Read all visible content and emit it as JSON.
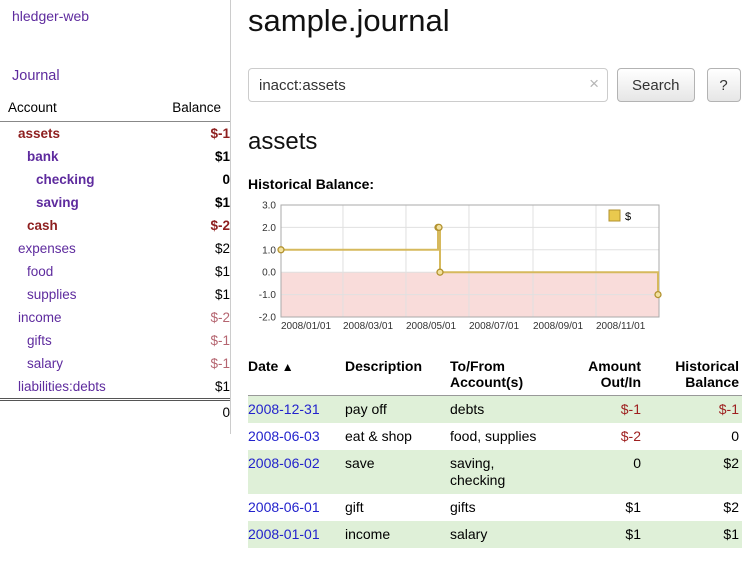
{
  "app": {
    "title": "hledger-web"
  },
  "theme": {
    "link_purple": "#5e2b9e",
    "negative_dark": "#8e1f1f",
    "negative_light": "#b56570",
    "negative": "#9e2020",
    "date_link_blue": "#2222cc",
    "row_green": "#dff0d8"
  },
  "sidebar": {
    "journal_label": "Journal",
    "accounts": {
      "col_account": "Account",
      "col_balance": "Balance",
      "rows": [
        {
          "name": "assets",
          "balance": "$-1",
          "indent": 0,
          "bold": true,
          "name_negative": true,
          "balance_negative": true
        },
        {
          "name": "bank",
          "balance": "$1",
          "indent": 1,
          "bold": true,
          "name_negative": false,
          "balance_negative": false
        },
        {
          "name": "checking",
          "balance": "0",
          "indent": 2,
          "bold": true,
          "name_negative": false,
          "balance_negative": false
        },
        {
          "name": "saving",
          "balance": "$1",
          "indent": 2,
          "bold": true,
          "name_negative": false,
          "balance_negative": false
        },
        {
          "name": "cash",
          "balance": "$-2",
          "indent": 1,
          "bold": true,
          "name_negative": true,
          "balance_negative": true
        },
        {
          "name": "expenses",
          "balance": "$2",
          "indent": 0,
          "bold": false,
          "name_negative": false,
          "balance_negative": false
        },
        {
          "name": "food",
          "balance": "$1",
          "indent": 1,
          "bold": false,
          "name_negative": false,
          "balance_negative": false
        },
        {
          "name": "supplies",
          "balance": "$1",
          "indent": 1,
          "bold": false,
          "name_negative": false,
          "balance_negative": false
        },
        {
          "name": "income",
          "balance": "$-2",
          "indent": 0,
          "bold": false,
          "name_negative": false,
          "balance_negative": true
        },
        {
          "name": "gifts",
          "balance": "$-1",
          "indent": 1,
          "bold": false,
          "name_negative": false,
          "balance_negative": true
        },
        {
          "name": "salary",
          "balance": "$-1",
          "indent": 1,
          "bold": false,
          "name_negative": false,
          "balance_negative": true
        },
        {
          "name": "liabilities:debts",
          "balance": "$1",
          "indent": 0,
          "bold": false,
          "name_negative": false,
          "balance_negative": false
        }
      ],
      "total": "0"
    }
  },
  "main": {
    "title": "sample.journal",
    "search": {
      "value": "inacct:assets",
      "clear_icon": "×",
      "search_label": "Search",
      "help_label": "?"
    },
    "account_heading": "assets",
    "chart_label": "Historical Balance:"
  },
  "chart_data": {
    "type": "line",
    "style": "step-after",
    "title": "Historical Balance:",
    "legend": {
      "label": "$",
      "position": "top-right"
    },
    "ylim": [
      -2.0,
      3.0
    ],
    "yticks": [
      3.0,
      2.0,
      1.0,
      0.0,
      -1.0,
      -2.0
    ],
    "x_range_days": 366,
    "x_tick_days": [
      0,
      60,
      121,
      182,
      244,
      305
    ],
    "x_tick_labels": [
      "2008/01/01",
      "2008/03/01",
      "2008/05/01",
      "2008/07/01",
      "2008/09/01",
      "2008/11/01"
    ],
    "series": [
      {
        "name": "$",
        "points": [
          {
            "date": "2008-01-01",
            "day": 0,
            "value": 1
          },
          {
            "date": "2008-06-01",
            "day": 152,
            "value": 2
          },
          {
            "date": "2008-06-02",
            "day": 153,
            "value": 2
          },
          {
            "date": "2008-06-03",
            "day": 154,
            "value": 0
          },
          {
            "date": "2008-12-31",
            "day": 365,
            "value": -1
          }
        ]
      }
    ],
    "colors": {
      "line": "#d6b95c",
      "line_dark": "#b2922f",
      "marker_fill": "#f3e2a0",
      "legend_fill": "#e9c94e",
      "negative_region": "#f9dcda",
      "grid": "#e0e0e0",
      "border": "#aaaaaa"
    }
  },
  "register": {
    "headers": [
      {
        "label": "Date",
        "sort_indicator": "▲",
        "align": "left"
      },
      {
        "label": "Description",
        "align": "left"
      },
      {
        "label": "To/From\nAccount(s)",
        "align": "left"
      },
      {
        "label": "Amount\nOut/In",
        "align": "right"
      },
      {
        "label": "Historical\nBalance",
        "align": "right"
      }
    ],
    "rows": [
      {
        "date": "2008-12-31",
        "description": "pay off",
        "accounts": "debts",
        "amount": "$-1",
        "amount_negative": true,
        "balance": "$-1",
        "balance_negative": true
      },
      {
        "date": "2008-06-03",
        "description": "eat & shop",
        "accounts": "food, supplies",
        "amount": "$-2",
        "amount_negative": true,
        "balance": "0",
        "balance_negative": false
      },
      {
        "date": "2008-06-02",
        "description": "save",
        "accounts": "saving,\nchecking",
        "amount": "0",
        "amount_negative": false,
        "balance": "$2",
        "balance_negative": false
      },
      {
        "date": "2008-06-01",
        "description": "gift",
        "accounts": "gifts",
        "amount": "$1",
        "amount_negative": false,
        "balance": "$2",
        "balance_negative": false
      },
      {
        "date": "2008-01-01",
        "description": "income",
        "accounts": "salary",
        "amount": "$1",
        "amount_negative": false,
        "balance": "$1",
        "balance_negative": false
      }
    ]
  }
}
